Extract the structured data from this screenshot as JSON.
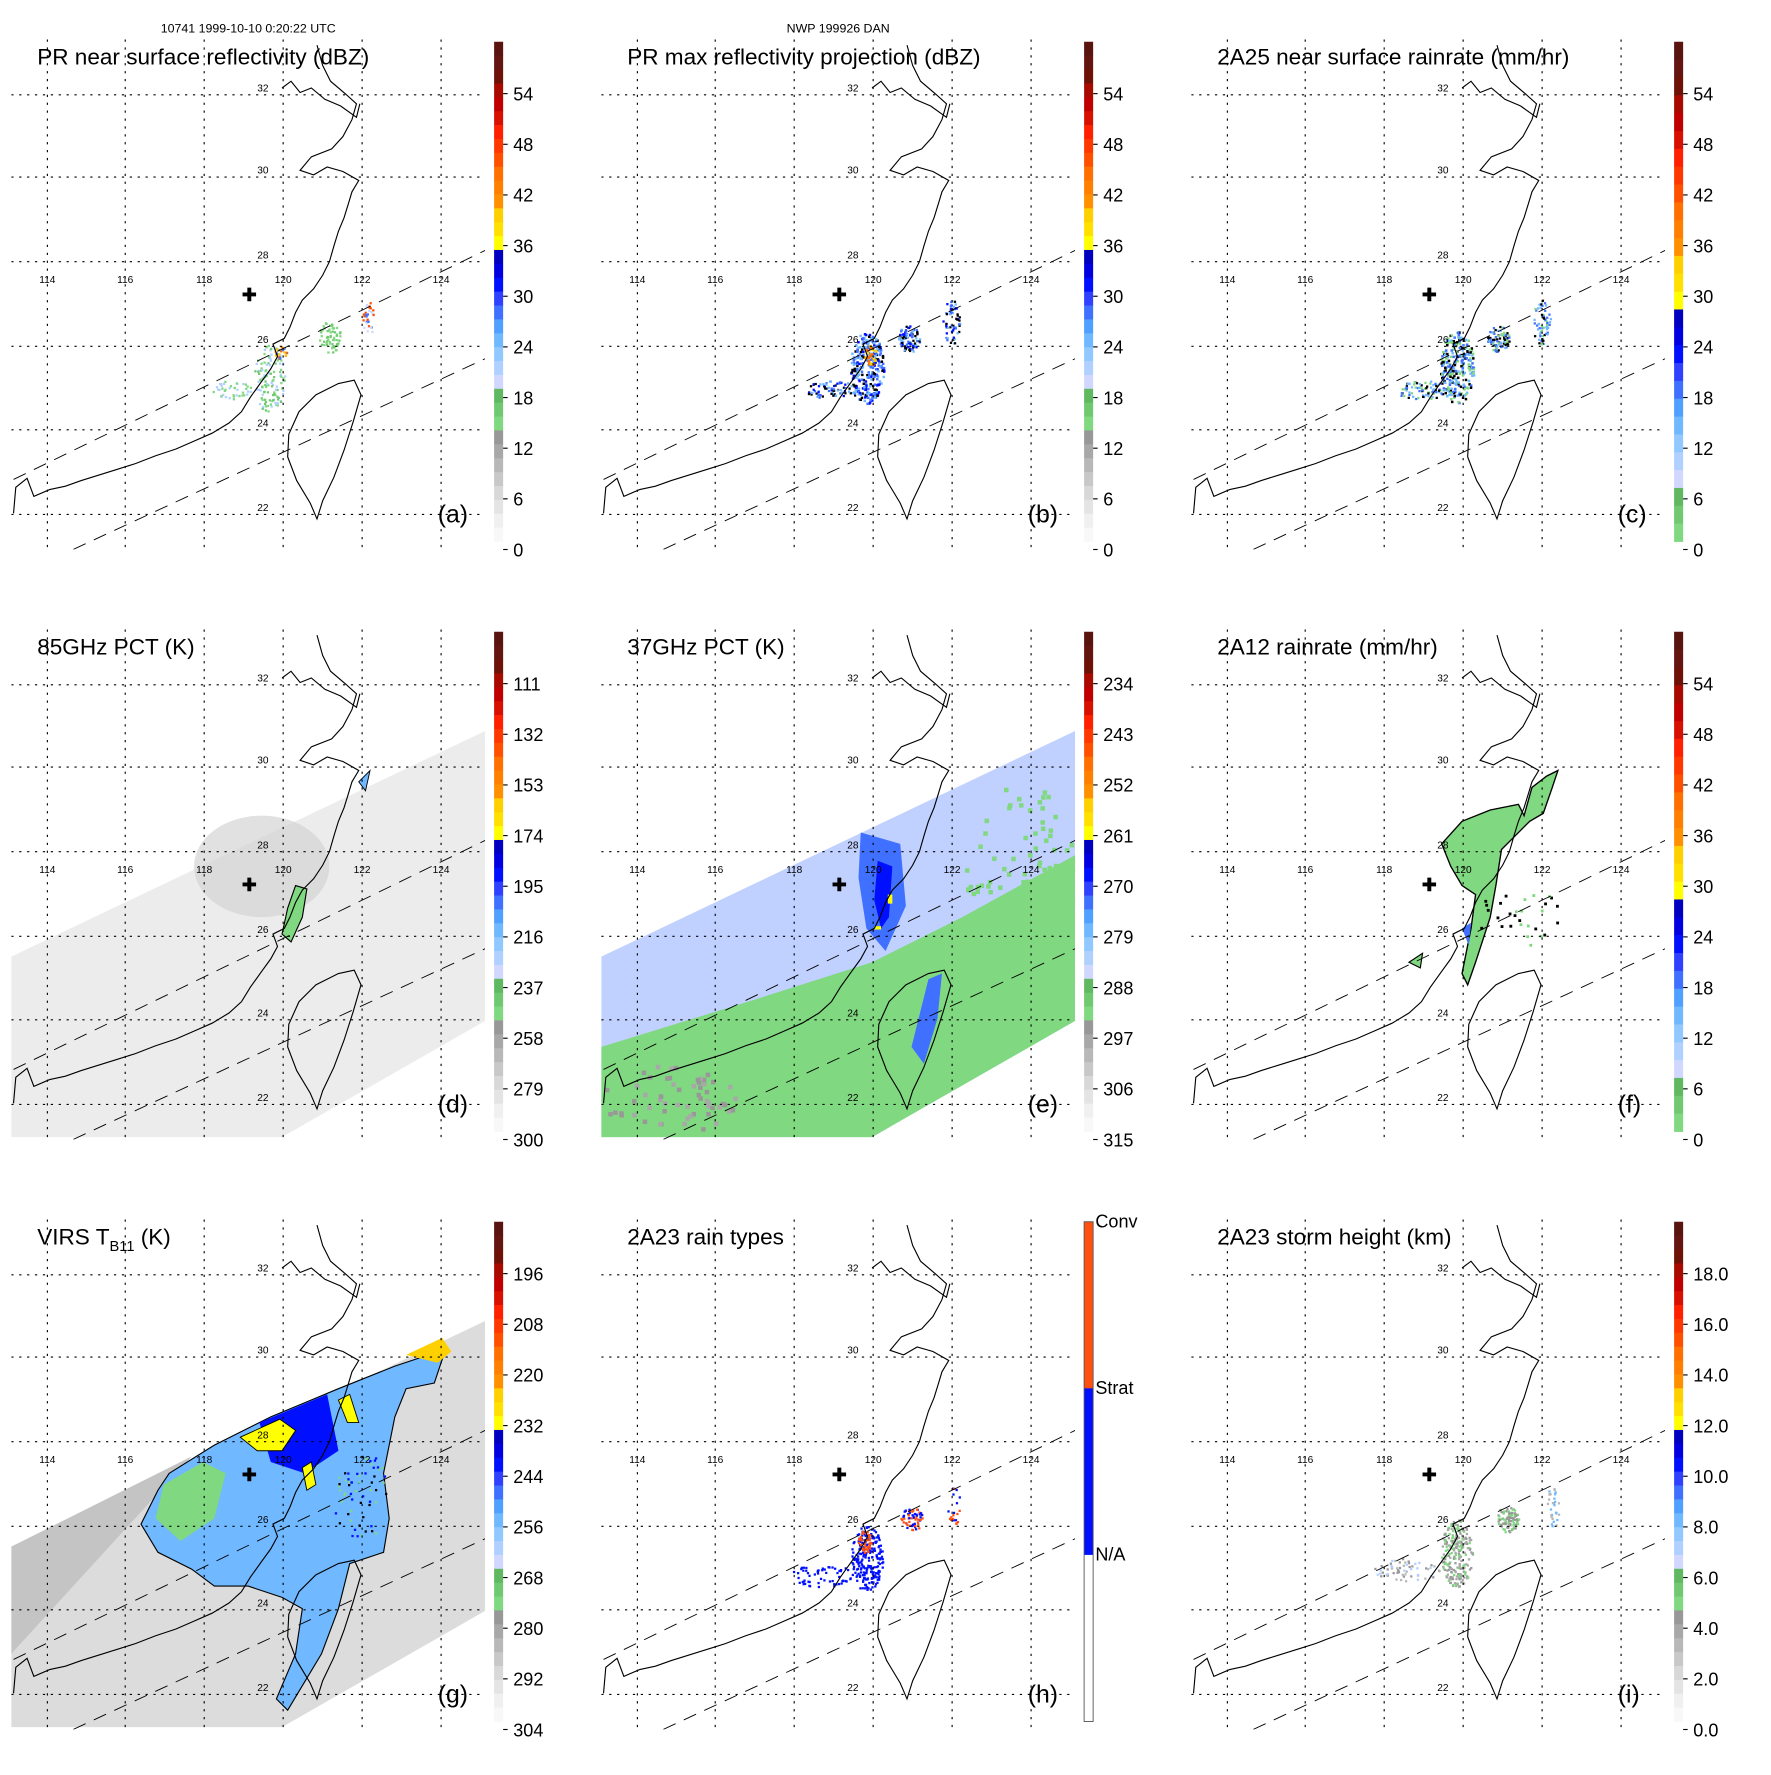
{
  "header": {
    "orbit_time": "10741 1999-10-10 0:20:22 UTC",
    "storm": "NWP 199926 DAN"
  },
  "map": {
    "lon_labels": [
      "114",
      "116",
      "118",
      "120",
      "122",
      "124"
    ],
    "lat_labels": [
      "32",
      "30",
      "28",
      "26",
      "24",
      "22"
    ]
  },
  "palettes": {
    "std": [
      "#5a1410",
      "#651510",
      "#6e1208",
      "#a80a00",
      "#c00000",
      "#d81000",
      "#ff2000",
      "#ff3800",
      "#ff5000",
      "#ff7000",
      "#ff8000",
      "#ff9000",
      "#ffd000",
      "#ffe000",
      "#ffff00",
      "#0000c0",
      "#0000e0",
      "#0010ff",
      "#3040ff",
      "#4070ff",
      "#50a0ff",
      "#70b8ff",
      "#90c8ff",
      "#b0d0ff",
      "#d0d8ff",
      "#60b860",
      "#70c870",
      "#80d880",
      "#989898",
      "#a8a8a8",
      "#b8b8b8",
      "#c8c8c8",
      "#d8d8d8",
      "#e4e4e4",
      "#f0f0f0",
      "#f8f8f8"
    ],
    "rain": [
      "#5a1410",
      "#651510",
      "#6e1208",
      "#a80a00",
      "#c00000",
      "#d81000",
      "#ff2000",
      "#ff3800",
      "#ff5000",
      "#ff7000",
      "#ff8000",
      "#ff9000",
      "#ffd000",
      "#ffe000",
      "#ffff00",
      "#0000c0",
      "#0000e0",
      "#0010ff",
      "#3040ff",
      "#4070ff",
      "#50a0ff",
      "#70b8ff",
      "#90c8ff",
      "#b0d0ff",
      "#d0d8ff",
      "#60b860",
      "#70c870",
      "#80d880"
    ],
    "raintype": [
      "#ff5010",
      "#0010ff",
      "#ffffff"
    ]
  },
  "panels": [
    {
      "id": "a",
      "title": "PR near surface reflectivity (dBZ)",
      "label": "(a)",
      "palette": "std",
      "ticks": [
        "54",
        "48",
        "42",
        "36",
        "30",
        "24",
        "18",
        "12",
        "6",
        "0"
      ]
    },
    {
      "id": "b",
      "title": "PR max reflectivity projection (dBZ)",
      "label": "(b)",
      "palette": "std",
      "ticks": [
        "54",
        "48",
        "42",
        "36",
        "30",
        "24",
        "18",
        "12",
        "6",
        "0"
      ]
    },
    {
      "id": "c",
      "title": "2A25 near surface rainrate (mm/hr)",
      "label": "(c)",
      "palette": "rain",
      "ticks": [
        "54",
        "48",
        "42",
        "36",
        "30",
        "24",
        "18",
        "12",
        "6",
        "0"
      ]
    },
    {
      "id": "d",
      "title": "85GHz PCT (K)",
      "label": "(d)",
      "palette": "std",
      "ticks": [
        "111",
        "132",
        "153",
        "174",
        "195",
        "216",
        "237",
        "258",
        "279",
        "300"
      ]
    },
    {
      "id": "e",
      "title": "37GHz PCT (K)",
      "label": "(e)",
      "palette": "std",
      "ticks": [
        "234",
        "243",
        "252",
        "261",
        "270",
        "279",
        "288",
        "297",
        "306",
        "315"
      ]
    },
    {
      "id": "f",
      "title": "2A12 rainrate (mm/hr)",
      "label": "(f)",
      "palette": "rain",
      "ticks": [
        "54",
        "48",
        "42",
        "36",
        "30",
        "24",
        "18",
        "12",
        "6",
        "0"
      ]
    },
    {
      "id": "g",
      "title": "VIRS T",
      "title_sub": "B11",
      "title_after": " (K)",
      "label": "(g)",
      "palette": "std",
      "ticks": [
        "196",
        "208",
        "220",
        "232",
        "244",
        "256",
        "268",
        "280",
        "292",
        "304"
      ]
    },
    {
      "id": "h",
      "title": "2A23 rain types",
      "label": "(h)",
      "palette": "raintype",
      "categories": [
        "Conv",
        "Strat",
        "N/A"
      ]
    },
    {
      "id": "i",
      "title": "2A23 storm height (km)",
      "label": "(i)",
      "palette": "std",
      "ticks": [
        "18.0",
        "16.0",
        "14.0",
        "12.0",
        "10.0",
        "8.0",
        "6.0",
        "4.0",
        "2.0",
        "0.0"
      ]
    }
  ]
}
